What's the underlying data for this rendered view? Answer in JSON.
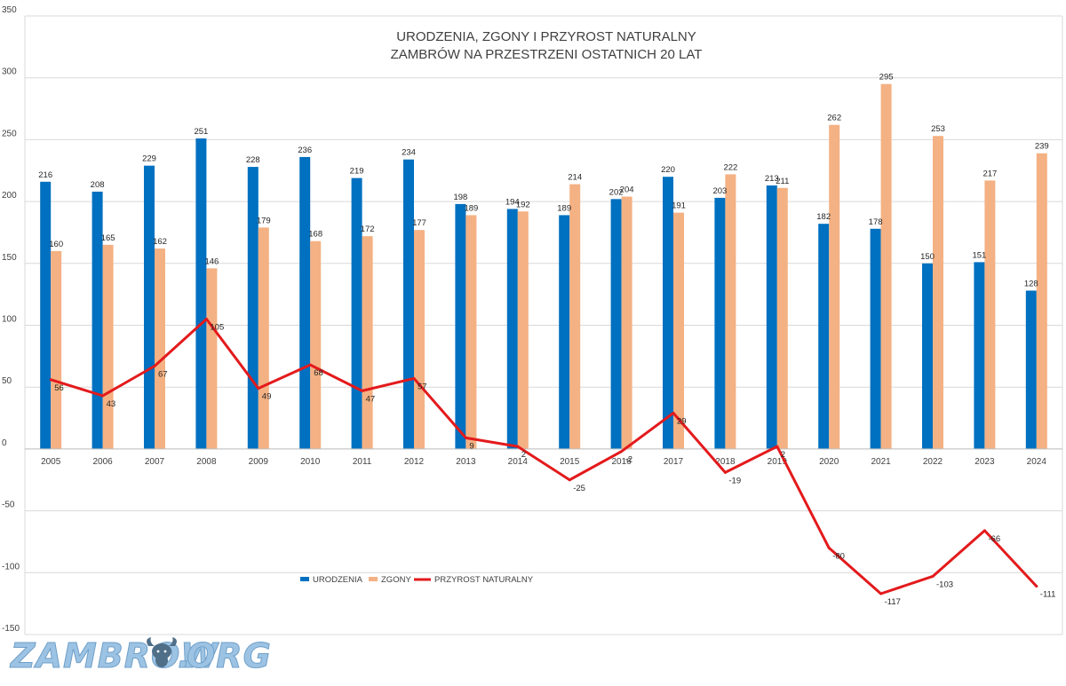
{
  "chart_data": {
    "type": "bar",
    "title_lines": [
      "URODZENIA, ZGONY I PRZYROST NATURALNY",
      "ZAMBRÓW NA PRZESTRZENI OSTATNICH  20 LAT"
    ],
    "categories": [
      "2005",
      "2006",
      "2007",
      "2008",
      "2009",
      "2010",
      "2011",
      "2012",
      "2013",
      "2014",
      "2015",
      "2016",
      "2017",
      "2018",
      "2019",
      "2020",
      "2021",
      "2022",
      "2023",
      "2024"
    ],
    "series": [
      {
        "name": "URODZENIA",
        "kind": "bar",
        "color": "#0070c0",
        "values": [
          216,
          208,
          229,
          251,
          228,
          236,
          219,
          234,
          198,
          194,
          189,
          202,
          220,
          203,
          213,
          182,
          178,
          150,
          151,
          128
        ]
      },
      {
        "name": "ZGONY",
        "kind": "bar",
        "color": "#f4b183",
        "values": [
          160,
          165,
          162,
          146,
          179,
          168,
          172,
          177,
          189,
          192,
          214,
          204,
          191,
          222,
          211,
          262,
          295,
          253,
          217,
          239
        ]
      },
      {
        "name": "PRZYROST NATURALNY",
        "kind": "line",
        "color": "#e31a1c",
        "values": [
          56,
          43,
          67,
          105,
          49,
          68,
          47,
          57,
          9,
          2,
          -25,
          -2,
          29,
          -19,
          2,
          -80,
          -117,
          -103,
          -66,
          -111
        ]
      }
    ],
    "ylim": [
      -150,
      350
    ],
    "yticks": [
      -150,
      -100,
      -50,
      0,
      50,
      100,
      150,
      200,
      250,
      300,
      350
    ],
    "grid": true,
    "legend_position": "lower-left inside plot"
  },
  "watermark": {
    "text_left": "ZAMBROW",
    "text_right": "ORG",
    "icon": "bison-head-icon"
  }
}
